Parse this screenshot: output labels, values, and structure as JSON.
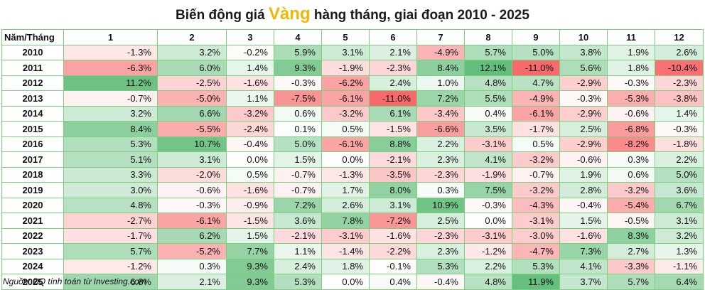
{
  "title": {
    "prefix": "Biến động giá ",
    "highlight": "Vàng",
    "suffix": " hàng tháng, giai đoạn 2010 - 2025"
  },
  "source": "Nguồn: ĐQ tính toán từ Investing.com",
  "colors": {
    "positive": "#63be7b",
    "negative": "#f8696b",
    "neutral": "#ffffff",
    "border": "#7ccf7c",
    "title_highlight": "#f2b705"
  },
  "chart_data": {
    "type": "heatmap",
    "title": "Biến động giá Vàng hàng tháng, giai đoạn 2010 - 2025",
    "corner_label": "Năm/Tháng",
    "columns": [
      "1",
      "2",
      "3",
      "4",
      "5",
      "6",
      "7",
      "8",
      "9",
      "10",
      "11",
      "12"
    ],
    "unit": "%",
    "rows": [
      {
        "year": "2010",
        "values": [
          -1.3,
          3.2,
          -0.2,
          5.9,
          3.1,
          2.1,
          -4.9,
          5.7,
          5.0,
          3.8,
          1.9,
          2.6
        ]
      },
      {
        "year": "2011",
        "values": [
          -6.3,
          6.0,
          1.4,
          9.3,
          -1.9,
          -2.3,
          8.4,
          12.1,
          -11.0,
          5.6,
          1.8,
          -10.4
        ]
      },
      {
        "year": "2012",
        "values": [
          11.2,
          -2.5,
          -1.6,
          -0.3,
          -6.2,
          2.4,
          1.0,
          4.8,
          4.7,
          -2.9,
          -0.3,
          -2.3
        ]
      },
      {
        "year": "2013",
        "values": [
          -0.7,
          -5.0,
          1.1,
          -7.5,
          -6.1,
          -11.0,
          7.2,
          5.5,
          -4.9,
          -0.3,
          -5.3,
          -3.8
        ]
      },
      {
        "year": "2014",
        "values": [
          3.2,
          6.6,
          -3.2,
          0.6,
          -3.2,
          6.1,
          -3.4,
          0.4,
          -6.1,
          -2.9,
          -0.6,
          1.4
        ]
      },
      {
        "year": "2015",
        "values": [
          8.4,
          -5.5,
          -2.4,
          0.1,
          0.5,
          -1.5,
          -6.6,
          3.5,
          -1.7,
          2.5,
          -6.8,
          -0.3
        ]
      },
      {
        "year": "2016",
        "values": [
          5.3,
          10.7,
          -0.4,
          5.0,
          -6.1,
          8.8,
          2.2,
          -3.1,
          0.5,
          -2.9,
          -8.2,
          -1.8
        ]
      },
      {
        "year": "2017",
        "values": [
          5.1,
          3.1,
          0.0,
          1.5,
          0.0,
          -2.1,
          2.3,
          4.1,
          -3.2,
          -0.6,
          0.3,
          2.2
        ]
      },
      {
        "year": "2018",
        "values": [
          3.3,
          -2.0,
          0.5,
          -0.7,
          -1.3,
          -3.5,
          -2.3,
          -1.9,
          -0.7,
          1.9,
          0.6,
          5.0
        ]
      },
      {
        "year": "2019",
        "values": [
          3.0,
          -0.6,
          -1.6,
          -0.7,
          1.7,
          8.0,
          0.3,
          7.5,
          -3.2,
          2.8,
          -3.2,
          3.6
        ]
      },
      {
        "year": "2020",
        "values": [
          4.8,
          -0.3,
          -0.9,
          7.2,
          2.6,
          3.1,
          10.9,
          -0.3,
          -4.3,
          -0.4,
          -5.4,
          6.7
        ]
      },
      {
        "year": "2021",
        "values": [
          -2.7,
          -6.1,
          -1.5,
          3.6,
          7.8,
          -7.2,
          2.5,
          0.0,
          -3.1,
          1.5,
          -0.5,
          3.1
        ]
      },
      {
        "year": "2022",
        "values": [
          -1.7,
          6.2,
          1.5,
          -2.1,
          -3.1,
          -1.6,
          -2.3,
          -3.1,
          -3.0,
          -1.6,
          8.3,
          3.2
        ]
      },
      {
        "year": "2023",
        "values": [
          5.7,
          -5.2,
          7.7,
          1.1,
          -1.4,
          -2.2,
          2.3,
          -1.2,
          -4.7,
          7.3,
          2.7,
          1.3
        ]
      },
      {
        "year": "2024",
        "values": [
          -1.2,
          0.3,
          9.3,
          2.4,
          1.8,
          -0.1,
          5.3,
          2.2,
          5.3,
          4.1,
          -3.3,
          -1.1
        ]
      },
      {
        "year": "2025",
        "values": [
          6.8,
          2.1,
          9.3,
          5.3,
          0.0,
          0.4,
          -0.4,
          4.8,
          11.9,
          3.7,
          5.7,
          6.4
        ]
      }
    ]
  }
}
